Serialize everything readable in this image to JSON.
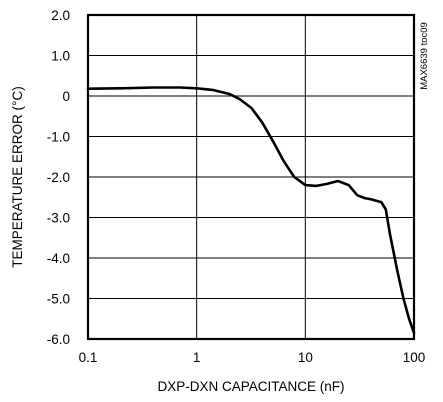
{
  "chart_data": {
    "type": "line",
    "title": "",
    "xlabel": "DXP-DXN CAPACITANCE (nF)",
    "ylabel": "TEMPERATURE ERROR (°C)",
    "side_label": "MAX6639 toc09",
    "x_scale": "log",
    "xlim": [
      0.1,
      100
    ],
    "ylim": [
      -6.0,
      2.0
    ],
    "grid": true,
    "x_ticks": [
      0.1,
      1,
      10,
      100
    ],
    "x_tick_labels": [
      "0.1",
      "1",
      "10",
      "100"
    ],
    "y_ticks": [
      2.0,
      1.0,
      0,
      -1.0,
      -2.0,
      -3.0,
      -4.0,
      -5.0,
      -6.0
    ],
    "y_tick_labels": [
      "2.0",
      "1.0",
      "0",
      "-1.0",
      "-2.0",
      "-3.0",
      "-4.0",
      "-5.0",
      "-6.0"
    ],
    "series": [
      {
        "x": [
          0.1,
          0.2,
          0.4,
          0.7,
          1.0,
          1.4,
          2.0,
          2.5,
          3.2,
          4.0,
          5.0,
          6.3,
          7.9,
          10.0,
          12.6,
          15.8,
          20.0,
          25.1,
          30.0,
          35.0,
          40.0,
          50.0,
          55.0,
          60.0,
          70.0,
          80.0,
          90.0,
          100.0
        ],
        "y": [
          0.18,
          0.19,
          0.21,
          0.21,
          0.19,
          0.15,
          0.05,
          -0.08,
          -0.3,
          -0.65,
          -1.1,
          -1.6,
          -2.0,
          -2.2,
          -2.22,
          -2.17,
          -2.1,
          -2.2,
          -2.45,
          -2.52,
          -2.55,
          -2.62,
          -2.8,
          -3.4,
          -4.3,
          -5.0,
          -5.5,
          -5.85
        ]
      }
    ]
  }
}
